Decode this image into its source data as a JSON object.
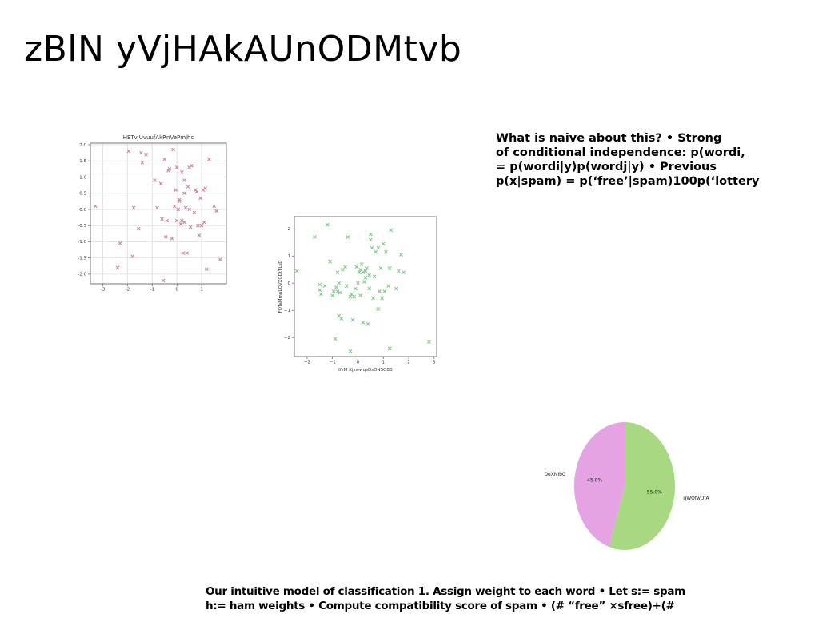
{
  "slide": {
    "title": "zBlN yVjHAkAUnODMtvb",
    "right_text": [
      "What is naive about this? • Strong",
      "of conditional independence: p(wordi,",
      "= p(wordi|y)p(wordj|y) • Previous",
      "p(x|spam) = p(‘free’|spam)100p(‘lottery"
    ],
    "bottom_text": [
      "Our intuitive model of classification 1. Assign weight to each word • Let s:= spam",
      "h:= ham weights • Compute compatibility score of spam • (# “free” ×sfree)+(#"
    ]
  },
  "chart_data": [
    {
      "type": "scatter",
      "title": "HETvjUvuufAkRnVePmjhc",
      "xlabel": "",
      "ylabel": "",
      "xlim": [
        -3.5,
        2.0
      ],
      "ylim": [
        -2.3,
        2.05
      ],
      "xticks": [
        "-3",
        "-2",
        "-1",
        "0",
        "1"
      ],
      "xtick_values": [
        -3,
        -2,
        -1,
        0,
        1
      ],
      "yticks": [
        "2.0",
        "1.5",
        "1.0",
        "0.5",
        "0.0",
        "-0.5",
        "-1.0",
        "-1.5",
        "-2.0"
      ],
      "ytick_values": [
        2.0,
        1.5,
        1.0,
        0.5,
        0.0,
        -0.5,
        -1.0,
        -1.5,
        -2.0
      ],
      "grid": true,
      "marker": "x",
      "color": "#c9889c",
      "x": [
        -3.3,
        -2.3,
        -2.4,
        -1.95,
        -1.8,
        -1.75,
        -1.45,
        -1.4,
        -1.25,
        -0.9,
        -0.8,
        -0.65,
        -0.6,
        -0.5,
        -0.45,
        -0.4,
        -0.35,
        -0.3,
        -0.2,
        -0.15,
        -0.1,
        -0.05,
        0.0,
        0.0,
        0.05,
        0.1,
        0.1,
        0.15,
        0.2,
        0.25,
        0.3,
        0.3,
        0.35,
        0.4,
        0.45,
        0.5,
        0.55,
        0.6,
        0.7,
        0.8,
        0.85,
        0.9,
        0.95,
        1.0,
        1.05,
        1.15,
        1.2,
        1.3,
        1.5,
        1.6,
        1.75,
        -1.55,
        -0.55,
        0.3,
        0.2,
        0.75,
        0.5,
        1.1
      ],
      "y": [
        0.1,
        -1.05,
        -1.8,
        1.8,
        -1.45,
        0.05,
        1.75,
        1.45,
        1.7,
        0.9,
        0.05,
        0.8,
        -0.3,
        1.55,
        -0.85,
        -0.35,
        1.2,
        1.25,
        -0.9,
        1.85,
        0.1,
        0.6,
        -0.35,
        1.3,
        0.0,
        0.3,
        0.25,
        -0.45,
        1.15,
        -1.35,
        0.9,
        0.5,
        0.05,
        -1.35,
        0.7,
        1.3,
        -0.55,
        1.35,
        -0.1,
        0.55,
        -0.5,
        -0.8,
        0.35,
        -0.5,
        0.6,
        0.65,
        -1.85,
        1.55,
        0.1,
        -0.05,
        -1.55,
        -0.6,
        -2.2,
        -0.4,
        -0.35,
        0.6,
        0.0,
        -0.4
      ]
    },
    {
      "type": "scatter",
      "title": "",
      "xlabel": "IfzM XjxwwqsDsDNSOBB",
      "ylabel": "FOTaMmnLQVXGDtTLsD",
      "xlim": [
        -2.5,
        3.1
      ],
      "ylim": [
        -2.7,
        2.45
      ],
      "xticks": [
        "−2",
        "−1",
        "0",
        "1",
        "2",
        "3"
      ],
      "xtick_values": [
        -2,
        -1,
        0,
        1,
        2,
        3
      ],
      "yticks": [
        "2",
        "1",
        "0",
        "−1",
        "−2"
      ],
      "ytick_values": [
        2,
        1,
        0,
        -1,
        -2
      ],
      "grid": false,
      "marker": "x",
      "color": "#7fc98a",
      "x": [
        -2.4,
        -1.7,
        -1.5,
        -1.5,
        -1.45,
        -1.2,
        -1.1,
        -1.0,
        -0.95,
        -0.9,
        -0.85,
        -0.8,
        -0.8,
        -0.75,
        -0.7,
        -0.65,
        -0.6,
        -0.5,
        -0.45,
        -0.4,
        -0.3,
        -0.25,
        -0.2,
        -0.15,
        -0.1,
        -0.05,
        0.0,
        0.05,
        0.1,
        0.1,
        0.15,
        0.2,
        0.25,
        0.3,
        0.3,
        0.35,
        0.4,
        0.45,
        0.5,
        0.5,
        0.55,
        0.6,
        0.65,
        0.7,
        0.8,
        0.85,
        0.9,
        0.95,
        1.0,
        1.05,
        1.1,
        1.2,
        1.25,
        1.3,
        1.5,
        1.6,
        1.7,
        1.8,
        2.8,
        -1.3,
        0.2,
        -0.3,
        0.8,
        -0.75,
        1.25,
        0.45
      ],
      "y": [
        0.45,
        1.7,
        -0.25,
        -0.05,
        -0.4,
        2.15,
        0.8,
        -0.45,
        -0.3,
        -2.05,
        -0.15,
        0.4,
        -0.3,
        0.0,
        -0.35,
        -1.3,
        0.5,
        0.6,
        -0.1,
        1.7,
        -0.5,
        -0.4,
        -1.35,
        -0.5,
        -0.2,
        0.6,
        0.0,
        0.4,
        0.5,
        -0.45,
        0.7,
        -1.45,
        0.05,
        0.2,
        0.45,
        0.55,
        -1.5,
        -0.2,
        1.8,
        1.6,
        1.3,
        -0.55,
        0.25,
        1.15,
        1.3,
        -0.3,
        0.55,
        -0.55,
        1.45,
        -0.3,
        1.15,
        -0.1,
        0.55,
        1.95,
        -0.2,
        0.45,
        1.05,
        0.4,
        -2.15,
        -0.1,
        0.4,
        -2.5,
        -0.95,
        -1.2,
        -2.4,
        0.3
      ]
    },
    {
      "type": "pie",
      "title": "",
      "labels": [
        "DeXNIbG",
        "qWOfwDfA"
      ],
      "values": [
        45.0,
        55.0
      ],
      "value_labels": [
        "45.0%",
        "55.0%"
      ],
      "colors": [
        "#e6a3e3",
        "#a8d982"
      ]
    }
  ]
}
